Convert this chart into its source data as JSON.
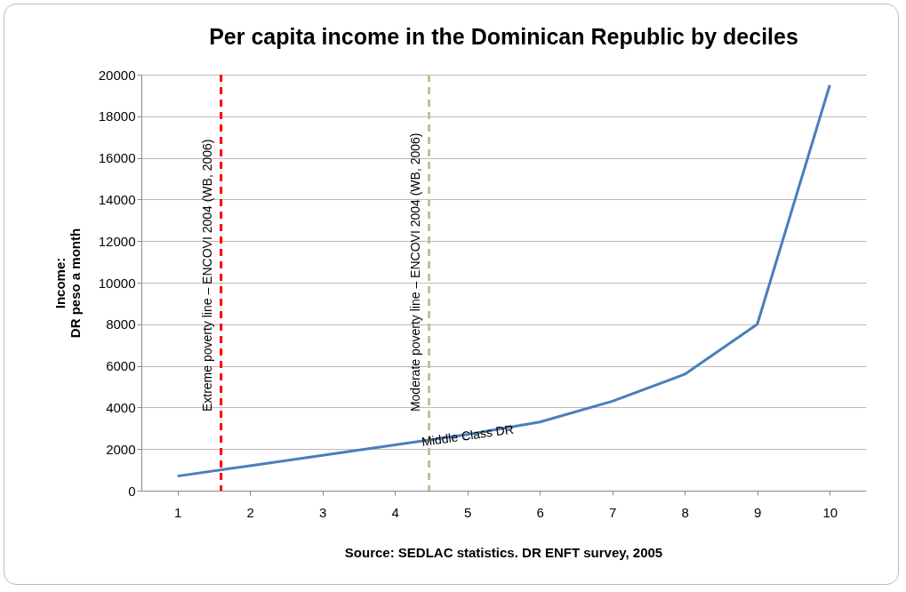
{
  "chart_data": {
    "type": "line",
    "title": "Per capita income in the Dominican Republic by deciles",
    "ylabel": "Income:\nDR peso a month",
    "x": [
      1,
      2,
      3,
      4,
      5,
      6,
      7,
      8,
      9,
      10
    ],
    "series": [
      {
        "color": "#4a7ebb",
        "values": [
          700,
          1200,
          1700,
          2200,
          2700,
          3300,
          4300,
          5600,
          8000,
          19500
        ]
      }
    ],
    "xlim": [
      0.5,
      10.5
    ],
    "xticks": [
      1,
      2,
      3,
      4,
      5,
      6,
      7,
      8,
      9,
      10
    ],
    "ylim": [
      0,
      20000
    ],
    "yticks": [
      0,
      2000,
      4000,
      6000,
      8000,
      10000,
      12000,
      14000,
      16000,
      18000,
      20000
    ],
    "grid": "y",
    "marker": "none",
    "line_style": "solid",
    "ref_lines": [
      {
        "axis": "x",
        "value": 1.6,
        "label": "Extreme poverty line – ENCOVI 2004 (WB, 2006)",
        "color": "#ff0000",
        "line_style": "dashed"
      },
      {
        "axis": "x",
        "value": 4.47,
        "label": "Moderate poverty line – ENCOVI 2004 (WB, 2006)",
        "color": "#c4bd97",
        "line_style": "dashed"
      }
    ],
    "annotations": [
      {
        "text": "Middle Class DR",
        "x": 5,
        "y": 2700
      },
      "Source: SEDLAC statistics.  DR ENFT survey, 2005"
    ]
  }
}
